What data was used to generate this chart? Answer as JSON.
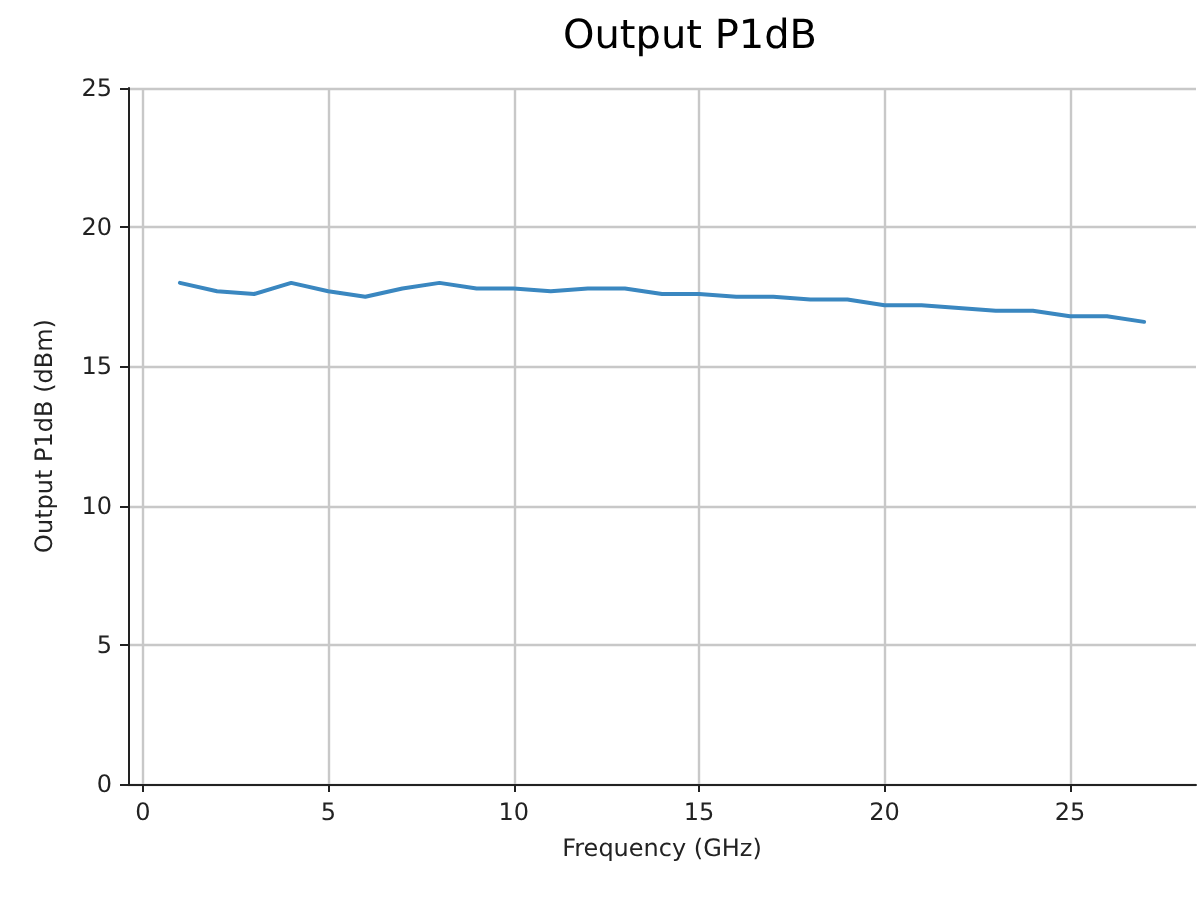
{
  "chart_data": {
    "type": "line",
    "title": "Output P1dB",
    "xlabel": "Frequency (GHz)",
    "ylabel": "Output P1dB (dBm)",
    "x": [
      1,
      2,
      3,
      4,
      5,
      6,
      7,
      8,
      9,
      10,
      11,
      12,
      13,
      14,
      15,
      16,
      17,
      18,
      19,
      20,
      21,
      22,
      23,
      24,
      25,
      26,
      27
    ],
    "series": [
      {
        "color": "#3a87c0",
        "values": [
          18.0,
          17.7,
          17.6,
          18.0,
          17.7,
          17.5,
          17.8,
          18.0,
          17.8,
          17.8,
          17.7,
          17.8,
          17.8,
          17.6,
          17.6,
          17.5,
          17.5,
          17.4,
          17.4,
          17.2,
          17.2,
          17.1,
          17.0,
          17.0,
          16.8,
          16.8,
          16.6
        ]
      }
    ],
    "xlim": [
      -0.4,
      28.4
    ],
    "xticks": [
      0,
      5,
      10,
      15,
      20,
      25
    ],
    "ylim": [
      0,
      25
    ],
    "yticks": [
      0,
      5,
      10,
      15,
      20,
      25
    ],
    "grid": true,
    "line_style": "solid",
    "marker": "none"
  }
}
